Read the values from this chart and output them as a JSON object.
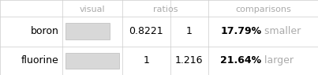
{
  "headers": [
    "",
    "visual",
    "ratios",
    "",
    "comparisons"
  ],
  "col_header_visual": "visual",
  "col_header_ratios": "ratios",
  "col_header_comparisons": "comparisons",
  "rows": [
    {
      "label": "boron",
      "ratio_left": "0.8221",
      "ratio_right": "1",
      "comparison_pct": "17.79%",
      "comparison_word": " smaller",
      "bar_width": 0.8221,
      "bar_color": "#d8d8d8",
      "bar_outline": "#bbbbbb"
    },
    {
      "label": "fluorine",
      "ratio_left": "1",
      "ratio_right": "1.216",
      "comparison_pct": "21.64%",
      "comparison_word": " larger",
      "bar_width": 1.0,
      "bar_color": "#d8d8d8",
      "bar_outline": "#bbbbbb"
    }
  ],
  "header_color": "#aaaaaa",
  "label_color": "#000000",
  "pct_color": "#000000",
  "word_color": "#aaaaaa",
  "ratio_color": "#000000",
  "grid_color": "#cccccc",
  "bg_color": "#ffffff",
  "font_size": 9,
  "header_font_size": 8
}
